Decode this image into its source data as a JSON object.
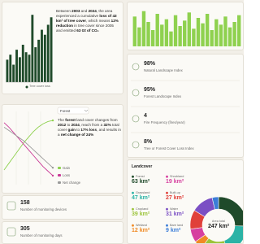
{
  "chart_data": [
    {
      "type": "bar",
      "legend": [
        "Tree cover loss"
      ],
      "color": "#1f4a2a",
      "ylim": [
        0,
        30
      ],
      "values": [
        9,
        11,
        7,
        13,
        10,
        15,
        12,
        11,
        27,
        14,
        17,
        21,
        19,
        23,
        26
      ],
      "paragraph": [
        {
          "text": "Between ",
          "bold": false
        },
        {
          "text": "2003",
          "bold": true
        },
        {
          "text": " and ",
          "bold": false
        },
        {
          "text": "2024",
          "bold": true
        },
        {
          "text": ", the area experienced a cumulative ",
          "bold": false
        },
        {
          "text": "loss of 43 km² of tree cover",
          "bold": true
        },
        {
          "text": ", which means ",
          "bold": false
        },
        {
          "text": "12% reduction",
          "bold": true
        },
        {
          "text": " in tree cover since 2005 and emitted ",
          "bold": false
        },
        {
          "text": "63 Gt of CO₂",
          "bold": true
        }
      ]
    },
    {
      "type": "bar",
      "color": "#8fd14f",
      "ylim": [
        0,
        30
      ],
      "values": [
        22,
        14,
        26,
        18,
        12,
        24,
        16,
        20,
        11,
        23,
        15,
        19,
        25,
        13,
        21,
        17,
        24,
        12,
        20,
        16,
        22,
        14,
        18,
        23
      ]
    },
    {
      "type": "line",
      "dropdown": "Forest",
      "ylim": [
        -25,
        40
      ],
      "categories": [
        null,
        null,
        null,
        null,
        null,
        null,
        null,
        null,
        null,
        null,
        null
      ],
      "series": [
        {
          "name": "Gain",
          "color": "#8fd14f",
          "values": [
            -12,
            -6,
            0,
            6,
            12,
            17,
            22,
            26,
            29,
            31,
            32
          ]
        },
        {
          "name": "Loss",
          "color": "#c93a96",
          "values": [
            30,
            26,
            21,
            16,
            11,
            6,
            1,
            -4,
            -9,
            -13,
            -17
          ]
        },
        {
          "name": "Net change",
          "color": "#9a9a9a",
          "values": [
            26,
            23,
            20,
            17,
            14,
            10,
            6,
            2,
            -2,
            -6,
            -10
          ]
        }
      ],
      "paragraph": [
        {
          "text": "The ",
          "bold": false
        },
        {
          "text": "forest",
          "bold": true
        },
        {
          "text": " land cover changes from ",
          "bold": false
        },
        {
          "text": "2012",
          "bold": true
        },
        {
          "text": " to ",
          "bold": false
        },
        {
          "text": "2024",
          "bold": true
        },
        {
          "text": ", reach from a ",
          "bold": false
        },
        {
          "text": "32%",
          "bold": true
        },
        {
          "text": " total cover ",
          "bold": false
        },
        {
          "text": "gain",
          "bold": true
        },
        {
          "text": " to ",
          "bold": false
        },
        {
          "text": "17% loss",
          "bold": true
        },
        {
          "text": ", and results in a ",
          "bold": false
        },
        {
          "text": "net change of 24%",
          "bold": true
        }
      ]
    },
    {
      "type": "pie",
      "title": "Landcover",
      "center_label": "Area total",
      "center_value_label": "247 km²",
      "categories": [
        "Forest",
        "Grassland",
        "Cropland",
        "Wetland",
        "Shrubland",
        "Built-up",
        "Water",
        "Bare land"
      ],
      "values": [
        63,
        47,
        39,
        12,
        19,
        27,
        31,
        9
      ],
      "value_labels": [
        "63 km²",
        "47 km²",
        "39 km²",
        "12 km²",
        "19 km²",
        "27 km²",
        "31 km²",
        "9 km²"
      ],
      "colors": [
        "#1f4a2a",
        "#2bb3a6",
        "#9cc43a",
        "#f08a24",
        "#d6409f",
        "#e0403a",
        "#7b4fc4",
        "#3b7dd8"
      ]
    }
  ],
  "indices": [
    {
      "value": "98%",
      "label": "Natural Landscape Index"
    },
    {
      "value": "95%",
      "label": "Forest Landscape Index"
    },
    {
      "value": "4",
      "label": "Fire Frequency (fires/year)"
    },
    {
      "value": "8%",
      "label": "Tree or Forest Cover Loss Index"
    }
  ],
  "counters": [
    {
      "value": 158,
      "label": "Number of monitoring devices"
    },
    {
      "value": 305,
      "label": "Number of monitoring days"
    }
  ]
}
